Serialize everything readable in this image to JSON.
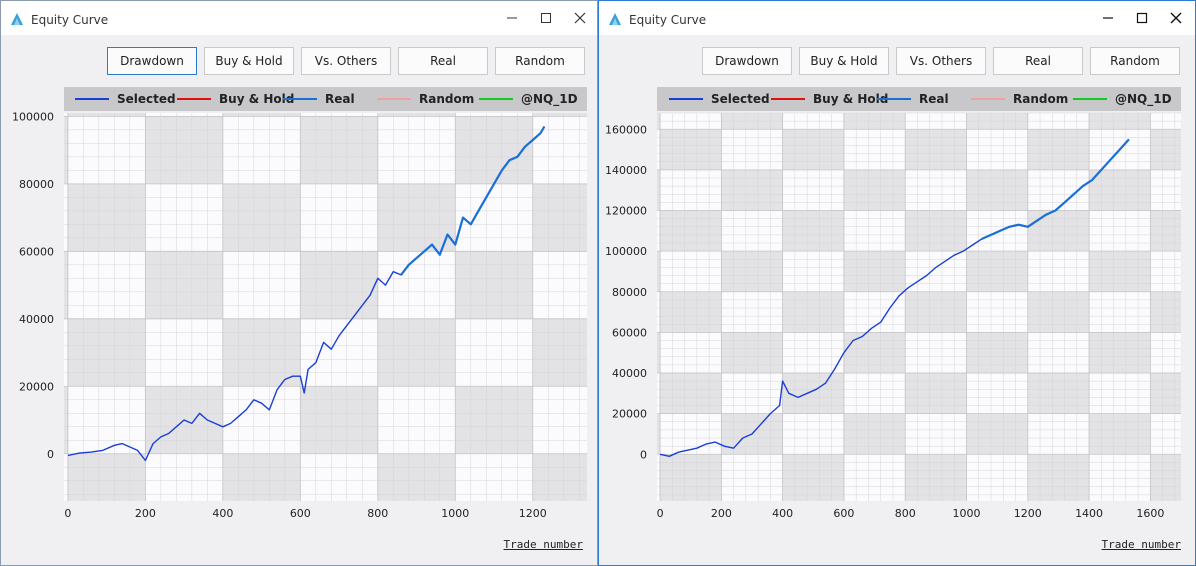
{
  "windows": [
    {
      "title": "Equity Curve",
      "buttons": [
        "Drawdown",
        "Buy & Hold",
        "Vs. Others",
        "Real",
        "Random"
      ],
      "active_button": 0,
      "x_axis_title": "Trade number"
    },
    {
      "title": "Equity Curve",
      "buttons": [
        "Drawdown",
        "Buy & Hold",
        "Vs. Others",
        "Real",
        "Random"
      ],
      "active_button": -1,
      "x_axis_title": "Trade number"
    }
  ],
  "chart_data": [
    {
      "type": "line",
      "xlim": [
        -10,
        1340
      ],
      "ylim": [
        -14000,
        101000
      ],
      "x_ticks": [
        0,
        200,
        400,
        600,
        800,
        1000,
        1200
      ],
      "y_ticks": [
        0,
        20000,
        40000,
        60000,
        80000,
        100000
      ],
      "legend": [
        "Selected",
        "Buy & Hold",
        "Real",
        "Random",
        "@NQ_1D"
      ],
      "legend_colors": [
        "#1a3fd6",
        "#e01010",
        "#1a6fd6",
        "#f0a0a0",
        "#10cc20"
      ],
      "legend_placement": "top",
      "grid": true,
      "series": [
        {
          "name": "Selected",
          "color": "#1a3fd6",
          "x": [
            0,
            30,
            60,
            90,
            120,
            140,
            160,
            180,
            200,
            220,
            240,
            260,
            280,
            300,
            320,
            340,
            360,
            380,
            400,
            420,
            440,
            460,
            480,
            500,
            520,
            540,
            560,
            580,
            600,
            610,
            620,
            640,
            660,
            680,
            700,
            720,
            740,
            760,
            780,
            800,
            820,
            840,
            860,
            880,
            900,
            920,
            940,
            960,
            980,
            1000,
            1020,
            1040,
            1060,
            1080,
            1100,
            1120,
            1140,
            1160,
            1180,
            1200,
            1220,
            1230
          ],
          "y": [
            -500,
            200,
            500,
            1000,
            2500,
            3000,
            2000,
            1000,
            -2000,
            3000,
            5000,
            6000,
            8000,
            10000,
            9000,
            12000,
            10000,
            9000,
            8000,
            9000,
            11000,
            13000,
            16000,
            15000,
            13000,
            19000,
            22000,
            23000,
            23000,
            18000,
            25000,
            27000,
            33000,
            31000,
            35000,
            38000,
            41000,
            44000,
            47000,
            52000,
            50000,
            54000,
            53000,
            56000,
            58000,
            60000,
            62000,
            59000,
            65000,
            62000,
            70000,
            68000,
            72000,
            76000,
            80000,
            84000,
            87000,
            88000,
            91000,
            93000,
            95000,
            97000
          ]
        },
        {
          "name": "Real",
          "color": "#1a6fd6",
          "x": [
            860,
            880,
            900,
            920,
            940,
            960,
            980,
            1000,
            1020,
            1040,
            1060,
            1080,
            1100,
            1120,
            1140,
            1160,
            1180,
            1200,
            1220,
            1230
          ],
          "y": [
            53000,
            56000,
            58000,
            60000,
            62000,
            59000,
            65000,
            62000,
            70000,
            68000,
            72000,
            76000,
            80000,
            84000,
            87000,
            88000,
            91000,
            93000,
            95000,
            97000
          ]
        }
      ]
    },
    {
      "type": "line",
      "xlim": [
        -10,
        1700
      ],
      "ylim": [
        -23000,
        168000
      ],
      "x_ticks": [
        0,
        200,
        400,
        600,
        800,
        1000,
        1200,
        1400,
        1600
      ],
      "y_ticks": [
        0,
        20000,
        40000,
        60000,
        80000,
        100000,
        120000,
        140000,
        160000
      ],
      "legend": [
        "Selected",
        "Buy & Hold",
        "Real",
        "Random",
        "@NQ_1D"
      ],
      "legend_colors": [
        "#1a3fd6",
        "#e01010",
        "#1a6fd6",
        "#f0a0a0",
        "#10cc20"
      ],
      "legend_placement": "top",
      "grid": true,
      "series": [
        {
          "name": "Selected",
          "color": "#1a3fd6",
          "x": [
            0,
            30,
            60,
            90,
            120,
            150,
            180,
            210,
            240,
            270,
            300,
            330,
            360,
            390,
            400,
            420,
            450,
            480,
            510,
            540,
            570,
            600,
            630,
            660,
            690,
            720,
            750,
            780,
            810,
            840,
            870,
            900,
            930,
            960,
            990,
            1020,
            1050,
            1080,
            1110,
            1140,
            1170,
            1200,
            1230,
            1260,
            1290,
            1320,
            1350,
            1380,
            1410,
            1440,
            1470,
            1500,
            1530
          ],
          "y": [
            0,
            -1000,
            1000,
            2000,
            3000,
            5000,
            6000,
            4000,
            3000,
            8000,
            10000,
            15000,
            20000,
            24000,
            36000,
            30000,
            28000,
            30000,
            32000,
            35000,
            42000,
            50000,
            56000,
            58000,
            62000,
            65000,
            72000,
            78000,
            82000,
            85000,
            88000,
            92000,
            95000,
            98000,
            100000,
            103000,
            106000,
            108000,
            110000,
            112000,
            113000,
            112000,
            115000,
            118000,
            120000,
            124000,
            128000,
            132000,
            135000,
            140000,
            145000,
            150000,
            155000
          ]
        },
        {
          "name": "Real",
          "color": "#1a6fd6",
          "x": [
            1050,
            1080,
            1110,
            1140,
            1170,
            1200,
            1230,
            1260,
            1290,
            1320,
            1350,
            1380,
            1410,
            1440,
            1470,
            1500,
            1530
          ],
          "y": [
            106000,
            108000,
            110000,
            112000,
            113000,
            112000,
            115000,
            118000,
            120000,
            124000,
            128000,
            132000,
            135000,
            140000,
            145000,
            150000,
            155000
          ]
        }
      ]
    }
  ]
}
